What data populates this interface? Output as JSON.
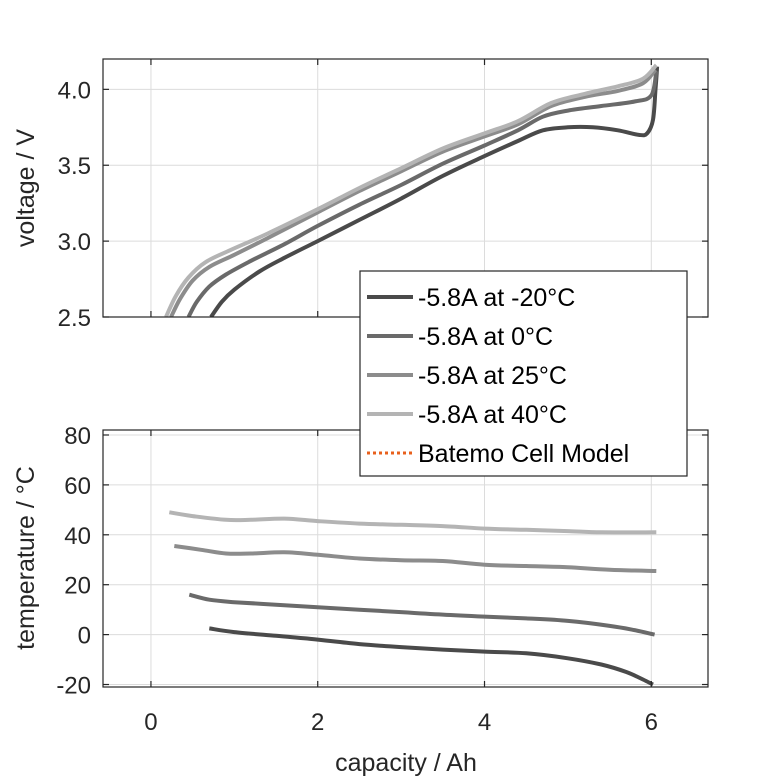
{
  "chart_data": [
    {
      "type": "line",
      "panel": "top",
      "title": "",
      "xlabel": "",
      "ylabel": "voltage / V",
      "xlim": [
        -0.575,
        6.68
      ],
      "ylim": [
        2.5,
        4.2
      ],
      "xticks": [
        0,
        2,
        4,
        6
      ],
      "yticks": [
        2.5,
        3.0,
        3.5,
        4.0
      ],
      "ytick_labels": [
        "2.5",
        "3.0",
        "3.5",
        "4.0"
      ],
      "show_xtick_labels": false,
      "grid": true,
      "series": [
        {
          "name": "-5.8A at -20°C",
          "color": "#4a4a4a",
          "x": [
            0.72,
            0.85,
            1.0,
            1.3,
            1.6,
            2.0,
            2.5,
            3.0,
            3.5,
            4.0,
            4.4,
            4.7,
            5.0,
            5.3,
            5.6,
            5.85,
            5.95,
            6.02,
            6.05,
            6.07
          ],
          "y": [
            2.5,
            2.6,
            2.68,
            2.8,
            2.89,
            3.0,
            3.14,
            3.28,
            3.43,
            3.56,
            3.66,
            3.73,
            3.75,
            3.75,
            3.73,
            3.7,
            3.71,
            3.8,
            4.0,
            4.15
          ]
        },
        {
          "name": "-5.8A at 0°C",
          "color": "#6a6a6a",
          "x": [
            0.45,
            0.55,
            0.7,
            0.9,
            1.2,
            1.6,
            2.0,
            2.5,
            3.0,
            3.5,
            4.0,
            4.4,
            4.7,
            5.0,
            5.4,
            5.8,
            6.0,
            6.06
          ],
          "y": [
            2.5,
            2.6,
            2.7,
            2.78,
            2.87,
            2.98,
            3.1,
            3.24,
            3.37,
            3.51,
            3.63,
            3.73,
            3.82,
            3.86,
            3.89,
            3.92,
            3.96,
            4.12
          ]
        },
        {
          "name": "-5.8A at 25°C",
          "color": "#8c8c8c",
          "x": [
            0.24,
            0.35,
            0.5,
            0.7,
            1.0,
            1.4,
            2.0,
            2.5,
            3.0,
            3.5,
            4.0,
            4.4,
            4.8,
            5.2,
            5.6,
            5.9,
            6.05
          ],
          "y": [
            2.5,
            2.62,
            2.74,
            2.83,
            2.91,
            3.02,
            3.19,
            3.33,
            3.46,
            3.59,
            3.69,
            3.77,
            3.89,
            3.95,
            3.99,
            4.04,
            4.13
          ]
        },
        {
          "name": "-5.8A at 40°C",
          "color": "#b4b4b4",
          "x": [
            0.18,
            0.3,
            0.45,
            0.65,
            0.95,
            1.4,
            2.0,
            2.5,
            3.0,
            3.5,
            4.0,
            4.4,
            4.8,
            5.2,
            5.6,
            5.9,
            6.06
          ],
          "y": [
            2.5,
            2.64,
            2.76,
            2.86,
            2.94,
            3.05,
            3.21,
            3.35,
            3.48,
            3.61,
            3.71,
            3.79,
            3.91,
            3.97,
            4.02,
            4.07,
            4.16
          ]
        }
      ]
    },
    {
      "type": "line",
      "panel": "bottom",
      "title": "",
      "xlabel": "capacity / Ah",
      "ylabel": "temperature / °C",
      "xlim": [
        -0.575,
        6.68
      ],
      "ylim": [
        -21,
        82
      ],
      "xticks": [
        0,
        2,
        4,
        6
      ],
      "xtick_labels": [
        "0",
        "2",
        "4",
        "6"
      ],
      "yticks": [
        -20,
        0,
        20,
        40,
        60,
        80
      ],
      "ytick_labels": [
        "-20",
        "0",
        "20",
        "40",
        "60",
        "80"
      ],
      "grid": true,
      "series": [
        {
          "name": "-5.8A at -20°C",
          "color": "#4a4a4a",
          "x": [
            0.7,
            1.0,
            1.5,
            2.0,
            2.5,
            3.0,
            3.5,
            4.0,
            4.5,
            5.0,
            5.4,
            5.7,
            5.9,
            6.02
          ],
          "y": [
            2.5,
            1.0,
            -0.5,
            -2.0,
            -3.8,
            -5.0,
            -6.0,
            -6.8,
            -7.5,
            -9.5,
            -12.0,
            -15.0,
            -18.0,
            -20.0
          ]
        },
        {
          "name": "-5.8A at 0°C",
          "color": "#6a6a6a",
          "x": [
            0.46,
            0.7,
            1.0,
            1.5,
            2.0,
            2.5,
            3.0,
            3.5,
            4.0,
            4.5,
            5.0,
            5.5,
            5.8,
            6.04
          ],
          "y": [
            16.0,
            14.0,
            13.0,
            12.0,
            11.0,
            10.0,
            9.0,
            8.0,
            7.2,
            6.5,
            5.5,
            3.5,
            1.8,
            0.0
          ]
        },
        {
          "name": "-5.8A at 25°C",
          "color": "#8c8c8c",
          "x": [
            0.28,
            0.6,
            0.9,
            1.2,
            1.6,
            2.0,
            2.5,
            3.0,
            3.5,
            4.0,
            4.5,
            5.0,
            5.5,
            6.06
          ],
          "y": [
            35.5,
            34.0,
            32.5,
            32.5,
            33.0,
            32.0,
            30.5,
            29.8,
            29.5,
            28.0,
            27.5,
            27.0,
            26.0,
            25.5
          ]
        },
        {
          "name": "-5.8A at 40°C",
          "color": "#b4b4b4",
          "x": [
            0.22,
            0.5,
            0.9,
            1.2,
            1.6,
            2.0,
            2.5,
            3.0,
            3.5,
            4.0,
            4.5,
            5.0,
            5.4,
            6.06
          ],
          "y": [
            49.0,
            47.5,
            46.0,
            46.0,
            46.5,
            45.5,
            44.5,
            44.0,
            43.5,
            42.5,
            42.0,
            41.5,
            41.0,
            41.0
          ]
        }
      ]
    }
  ],
  "legend": {
    "placement": "center-right (straddling both panels)",
    "entries": [
      {
        "label": "-5.8A at -20°C",
        "color": "#4a4a4a",
        "style": "solid"
      },
      {
        "label": "-5.8A at 0°C",
        "color": "#6a6a6a",
        "style": "solid"
      },
      {
        "label": "-5.8A at 25°C",
        "color": "#8c8c8c",
        "style": "solid"
      },
      {
        "label": "-5.8A at 40°C",
        "color": "#b4b4b4",
        "style": "solid"
      },
      {
        "label": "Batemo Cell Model",
        "color": "#e8601c",
        "style": "dotted"
      }
    ]
  }
}
